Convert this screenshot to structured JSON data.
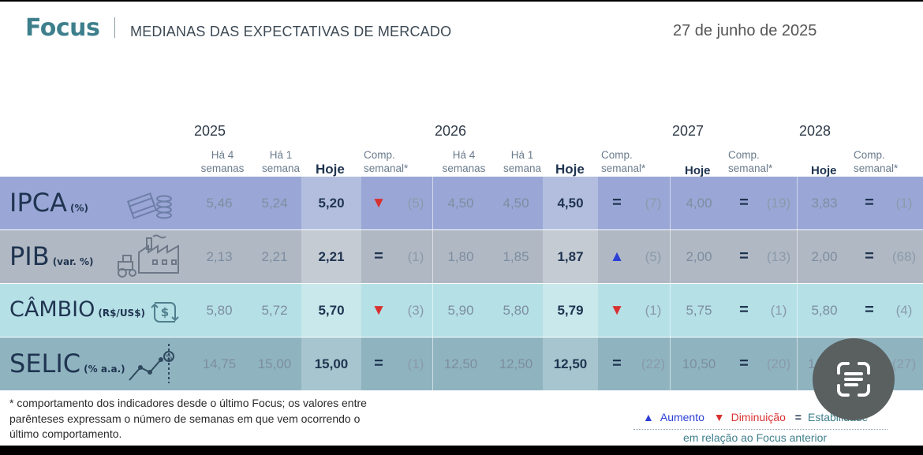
{
  "header": {
    "brand": "Focus",
    "subtitle": "MEDIANAS DAS EXPECTATIVAS DE MERCADO",
    "date": "27 de junho de 2025"
  },
  "years": [
    "2025",
    "2026",
    "2027",
    "2028"
  ],
  "columns": {
    "weeks4": "Há 4 semanas",
    "weeks1": "Há 1 semana",
    "today": "Hoje",
    "comp": "Comp. semanal*"
  },
  "rows": [
    {
      "name": "IPCA",
      "unit": "(%)",
      "icon": "money-stack-icon",
      "y2025": {
        "w4": "5,46",
        "w1": "5,24",
        "today": "5,20",
        "sym": "▼",
        "count": "(5)"
      },
      "y2026": {
        "w4": "4,50",
        "w1": "4,50",
        "today": "4,50",
        "sym": "=",
        "count": "(7)"
      },
      "y2027": {
        "today": "4,00",
        "sym": "=",
        "count": "(19)"
      },
      "y2028": {
        "today": "3,83",
        "sym": "=",
        "count": "(1)"
      }
    },
    {
      "name": "PIB",
      "unit": "(var. %)",
      "icon": "factory-tractor-icon",
      "y2025": {
        "w4": "2,13",
        "w1": "2,21",
        "today": "2,21",
        "sym": "=",
        "count": "(1)"
      },
      "y2026": {
        "w4": "1,80",
        "w1": "1,85",
        "today": "1,87",
        "sym": "▲",
        "count": "(5)"
      },
      "y2027": {
        "today": "2,00",
        "sym": "=",
        "count": "(13)"
      },
      "y2028": {
        "today": "2,00",
        "sym": "=",
        "count": "(68)"
      }
    },
    {
      "name": "CÂMBIO",
      "unit": "(R$/US$)",
      "icon": "currency-exchange-icon",
      "y2025": {
        "w4": "5,80",
        "w1": "5,72",
        "today": "5,70",
        "sym": "▼",
        "count": "(3)"
      },
      "y2026": {
        "w4": "5,90",
        "w1": "5,80",
        "today": "5,79",
        "sym": "▼",
        "count": "(1)"
      },
      "y2027": {
        "today": "5,75",
        "sym": "=",
        "count": "(1)"
      },
      "y2028": {
        "today": "5,80",
        "sym": "=",
        "count": "(4)"
      }
    },
    {
      "name": "SELIC",
      "unit": "(% a.a.)",
      "icon": "rate-trend-icon",
      "y2025": {
        "w4": "14,75",
        "w1": "15,00",
        "today": "15,00",
        "sym": "=",
        "count": "(1)"
      },
      "y2026": {
        "w4": "12,50",
        "w1": "12,50",
        "today": "12,50",
        "sym": "=",
        "count": "(22)"
      },
      "y2027": {
        "today": "10,50",
        "sym": "=",
        "count": "(20)"
      },
      "y2028": {
        "today": "1",
        "sym": "",
        "count": "(27)"
      }
    }
  ],
  "footnote": [
    "* comportamento dos indicadores desde o último Focus; os valores entre",
    "parênteses expressam o número de semanas em que vem ocorrendo o",
    "último comportamento."
  ],
  "legend": {
    "up_symbol": "▲",
    "up_label": "Aumento",
    "down_symbol": "▼",
    "down_label": "Diminuição",
    "eq_symbol": "=",
    "eq_label": "Estabilidade",
    "reference": "em relação ao Focus anterior"
  },
  "colors": {
    "brand": "#3e7f8c",
    "row_ipca": "#9aa7d6",
    "row_ipca_today": "#b3bedf",
    "row_pib": "#b0b8c3",
    "row_pib_today": "#c4cbd3",
    "row_cambio": "#b5e0e6",
    "row_cambio_today": "#c9e8ec",
    "row_selic": "#8fb4c0",
    "row_selic_today": "#a6c5ce",
    "increase": "#2c3fd6",
    "decrease": "#d93030"
  },
  "screen_overlay": {
    "icon": "lens-scan-icon"
  }
}
